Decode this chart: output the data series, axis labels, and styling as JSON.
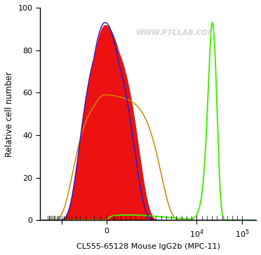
{
  "title": "",
  "xlabel": "CL555-65128 Mouse IgG2b (MPC-11)",
  "ylabel": "Relative cell number",
  "watermark": "WWW.PTCLAB.COM",
  "ylim": [
    0,
    100
  ],
  "background_color": "#ffffff",
  "plot_bg_color": "#ffffff",
  "blue_color": "#2222cc",
  "orange_color": "#cc8800",
  "green_color": "#44ee00",
  "red_fill_color": "#ee1111",
  "red_fill_alpha": 1.0,
  "linthresh": 200,
  "linscale": 0.25
}
